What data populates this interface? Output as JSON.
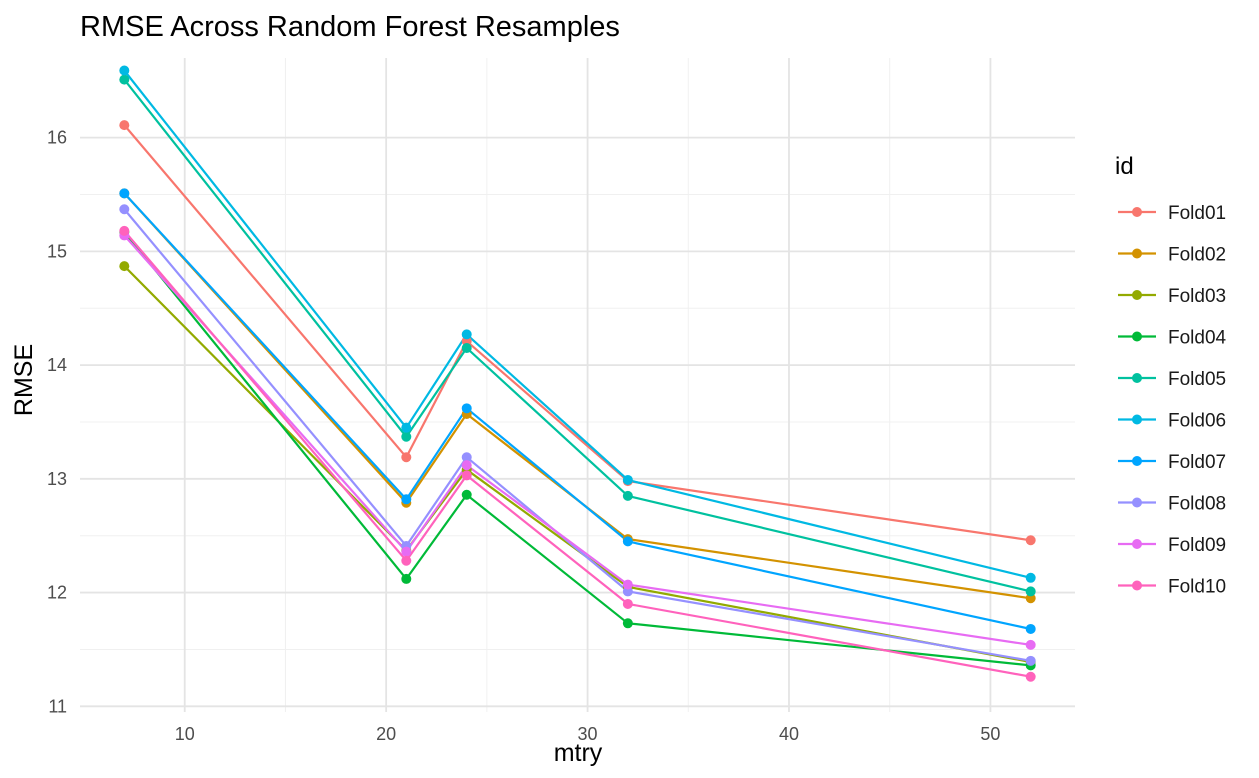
{
  "chart_data": {
    "type": "line",
    "title": "RMSE Across Random Forest Resamples",
    "xlabel": "mtry",
    "ylabel": "RMSE",
    "xlim": [
      4.8,
      54.2
    ],
    "ylim": [
      10.95,
      16.7
    ],
    "x_ticks": [
      10,
      20,
      30,
      40,
      50
    ],
    "y_ticks": [
      11,
      12,
      13,
      14,
      15,
      16
    ],
    "x": [
      7,
      21,
      24,
      32,
      52
    ],
    "grid": true,
    "legend_title": "id",
    "legend_position": "right",
    "series": [
      {
        "name": "Fold01",
        "color": "#F8766D",
        "values": [
          16.11,
          13.19,
          14.21,
          12.98,
          12.46
        ]
      },
      {
        "name": "Fold02",
        "color": "#D39200",
        "values": [
          15.51,
          12.79,
          13.57,
          12.47,
          11.95
        ]
      },
      {
        "name": "Fold03",
        "color": "#93AA00",
        "values": [
          14.87,
          12.37,
          13.08,
          12.05,
          11.39
        ]
      },
      {
        "name": "Fold04",
        "color": "#00BA38",
        "values": [
          15.17,
          12.12,
          12.86,
          11.73,
          11.36
        ]
      },
      {
        "name": "Fold05",
        "color": "#00C19F",
        "values": [
          16.51,
          13.37,
          14.15,
          12.85,
          12.01
        ]
      },
      {
        "name": "Fold06",
        "color": "#00B9E3",
        "values": [
          16.59,
          13.45,
          14.27,
          12.99,
          12.13
        ]
      },
      {
        "name": "Fold07",
        "color": "#00A5FF",
        "values": [
          15.51,
          12.82,
          13.62,
          12.45,
          11.68
        ]
      },
      {
        "name": "Fold08",
        "color": "#9590FF",
        "values": [
          15.37,
          12.41,
          13.19,
          12.01,
          11.4
        ]
      },
      {
        "name": "Fold09",
        "color": "#E76BF3",
        "values": [
          15.14,
          12.36,
          13.12,
          12.07,
          11.54
        ]
      },
      {
        "name": "Fold10",
        "color": "#FF62BC",
        "values": [
          15.18,
          12.28,
          13.03,
          11.9,
          11.26
        ]
      }
    ]
  }
}
